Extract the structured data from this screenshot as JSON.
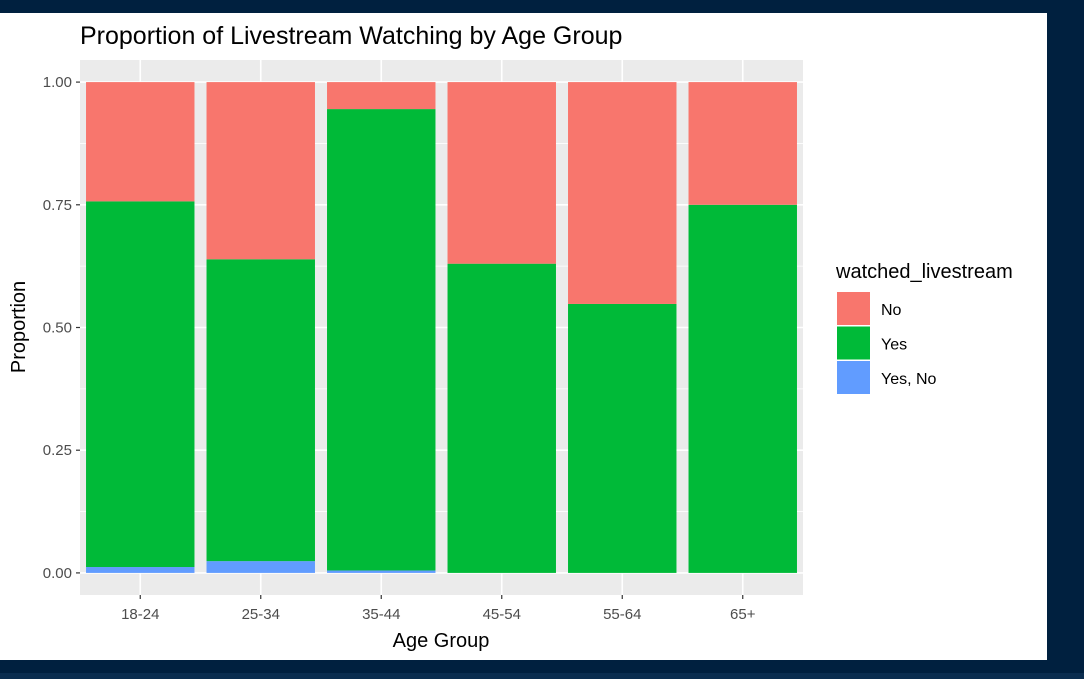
{
  "chart_data": {
    "type": "bar",
    "stacked": true,
    "normalized": true,
    "title": "Proportion of Livestream Watching by Age Group",
    "xlabel": "Age Group",
    "ylabel": "Proportion",
    "categories": [
      "18-24",
      "25-34",
      "35-44",
      "45-54",
      "55-64",
      "65+"
    ],
    "series": [
      {
        "name": "Yes, No",
        "color": "#619cff",
        "values": [
          0.012,
          0.024,
          0.005,
          0.0,
          0.0,
          0.0
        ]
      },
      {
        "name": "Yes",
        "color": "#00ba38",
        "values": [
          0.745,
          0.615,
          0.94,
          0.63,
          0.548,
          0.75
        ]
      },
      {
        "name": "No",
        "color": "#f8766d",
        "values": [
          0.243,
          0.361,
          0.055,
          0.37,
          0.452,
          0.25
        ]
      }
    ],
    "ylim": [
      -0.045,
      1.045
    ],
    "yticks": [
      0,
      0.25,
      0.5,
      0.75,
      1.0
    ],
    "ytick_labels": [
      "0.00",
      "0.25",
      "0.50",
      "0.75",
      "1.00"
    ],
    "grid": true,
    "legend": {
      "title": "watched_livestream",
      "position": "right",
      "entries": [
        {
          "label": "No",
          "color": "#f8766d"
        },
        {
          "label": "Yes",
          "color": "#00ba38"
        },
        {
          "label": "Yes, No",
          "color": "#619cff"
        }
      ]
    },
    "panel_background": "#ebebeb",
    "gridline_color": "#ffffff"
  }
}
